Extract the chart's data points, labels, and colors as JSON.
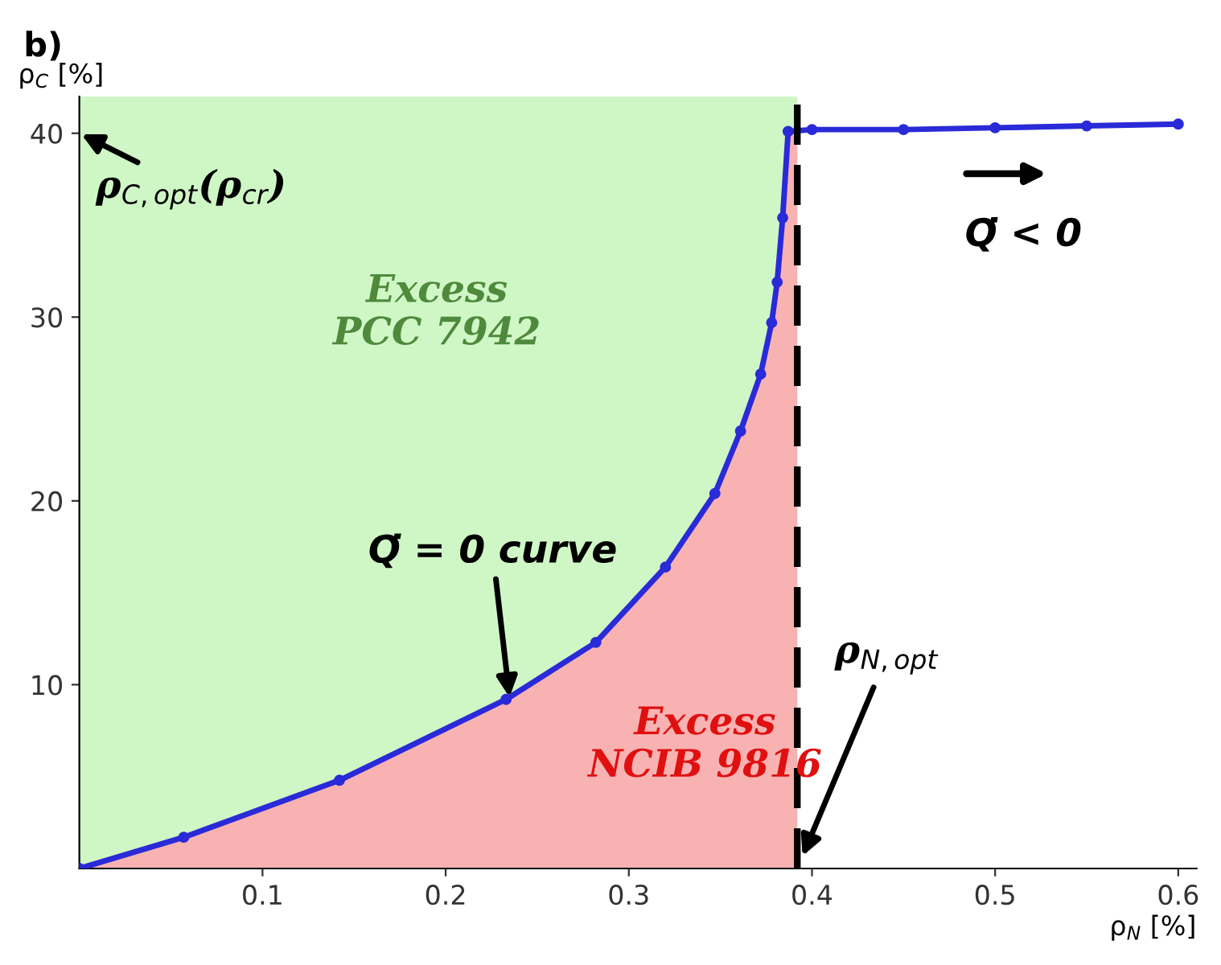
{
  "chart_data": {
    "type": "line",
    "title": "b)",
    "xlabel": "ρ$_{N}$ [%]",
    "ylabel": "ρ$_{C}$ [%]",
    "series": [
      {
        "type": "area",
        "color": "#f8b2b2",
        "x": [
          0,
          0.057,
          0.142,
          0.233,
          0.282,
          0.32,
          0.347,
          0.361,
          0.372,
          0.378,
          0.381,
          0.384,
          0.387,
          0.392
        ],
        "values": [
          0,
          1.7,
          4.8,
          9.2,
          12.3,
          16.4,
          20.4,
          23.8,
          26.9,
          29.7,
          31.9,
          35.4,
          40.1,
          40.1
        ]
      },
      {
        "color": "#2a2ad8",
        "marker": "circle",
        "x": [
          0,
          0.057,
          0.142,
          0.233,
          0.282,
          0.32,
          0.347,
          0.361,
          0.372,
          0.378,
          0.381,
          0.384,
          0.387,
          0.4,
          0.45,
          0.5,
          0.55,
          0.6
        ],
        "values": [
          0,
          1.7,
          4.8,
          9.2,
          12.3,
          16.4,
          20.4,
          23.8,
          26.9,
          29.7,
          31.9,
          35.4,
          40.1,
          40.2,
          40.2,
          40.3,
          40.4,
          40.5
        ]
      }
    ],
    "bands": [
      {
        "axis": "x",
        "from": 0,
        "to": 0.392,
        "color": "#cff7c6"
      }
    ],
    "ref_lines": [
      {
        "axis": "x",
        "value": 0.392,
        "color": "#000000",
        "line_style": "dashed",
        "label": "ρ$_{N,opt}$"
      }
    ],
    "annotations": [
      {
        "text": "ρ$_{C,opt}$(ρ$_{cr}$)",
        "x": 0,
        "y": 40
      },
      "Excess\nPCC 7942",
      {
        "text": "Q̇ = 0 curve",
        "x": 0.235,
        "y": 9.2
      },
      "Excess\nNCIB 9816",
      "Q̇ < 0"
    ],
    "xlim": [
      0,
      0.61
    ],
    "ylim": [
      0,
      42
    ],
    "xticks": [
      0.1,
      0.2,
      0.3,
      0.4,
      0.5,
      0.6
    ],
    "yticks": [
      10,
      20,
      30,
      40
    ],
    "grid": false
  }
}
